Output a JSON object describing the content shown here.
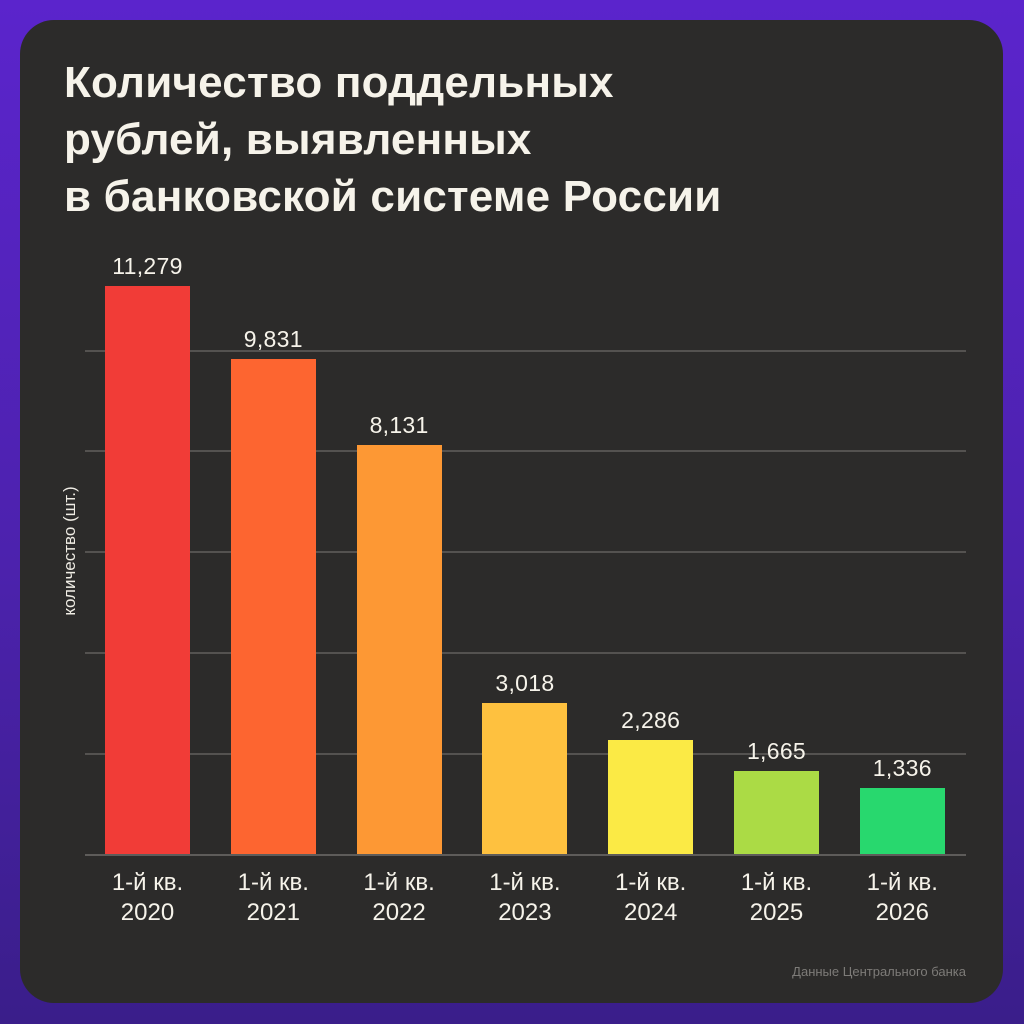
{
  "title": {
    "lines": [
      "Количество поддельных",
      "рублей, выявленных",
      "в банковской системе России"
    ]
  },
  "y_axis_label": "количество (шт.)",
  "source": "Данные Центрального банка",
  "colors": {
    "page_background_top": "#5b24cc",
    "page_background_bottom": "#3a1e8a",
    "card_background": "#2c2b2a",
    "text": "#f6f3ea",
    "gridline": "#545250",
    "source_text": "#7d7b78"
  },
  "bars": [
    {
      "value_label": "11,279",
      "label_line1": "1-й кв.",
      "label_line2": "2020",
      "color": "#f13c37"
    },
    {
      "value_label": "9,831",
      "label_line1": "1-й кв.",
      "label_line2": "2021",
      "color": "#fd6530"
    },
    {
      "value_label": "8,131",
      "label_line1": "1-й кв.",
      "label_line2": "2022",
      "color": "#fd9834"
    },
    {
      "value_label": "3,018",
      "label_line1": "1-й кв.",
      "label_line2": "2023",
      "color": "#fec13f"
    },
    {
      "value_label": "2,286",
      "label_line1": "1-й кв.",
      "label_line2": "2024",
      "color": "#fbea45"
    },
    {
      "value_label": "1,665",
      "label_line1": "1-й кв.",
      "label_line2": "2025",
      "color": "#abdb45"
    },
    {
      "value_label": "1,336",
      "label_line1": "1-й кв.",
      "label_line2": "2026",
      "color": "#28d86e"
    }
  ],
  "chart_data": {
    "type": "bar",
    "title": "Количество поддельных рублей, выявленных в банковской системе России",
    "categories": [
      "1-й кв. 2020",
      "1-й кв. 2021",
      "1-й кв. 2022",
      "1-й кв. 2023",
      "1-й кв. 2024",
      "1-й кв. 2025",
      "1-й кв. 2026"
    ],
    "values": [
      11279,
      9831,
      8131,
      3018,
      2286,
      1665,
      1336
    ],
    "xlabel": "",
    "ylabel": "количество (шт.)",
    "ylim": [
      0,
      11279
    ],
    "grid": true,
    "gridlines_at": [
      2000,
      4000,
      6000,
      8000,
      10000
    ],
    "y_tick_labels_shown": false,
    "data_labels": true,
    "legend": null,
    "bar_colors": [
      "#f13c37",
      "#fd6530",
      "#fd9834",
      "#fec13f",
      "#fbea45",
      "#abdb45",
      "#28d86e"
    ],
    "annotation": "Данные Центрального банка"
  }
}
